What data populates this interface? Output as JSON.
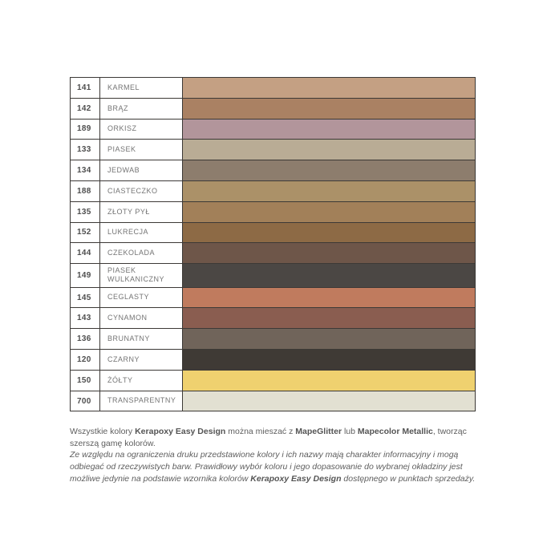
{
  "table": {
    "border_color": "#3c3936",
    "rows": [
      {
        "code": "141",
        "name": "KARMEL",
        "color": "#C4A083"
      },
      {
        "code": "142",
        "name": "BRĄZ",
        "color": "#AA8163"
      },
      {
        "code": "189",
        "name": "ORKISZ",
        "color": "#B2959B"
      },
      {
        "code": "133",
        "name": "PIASEK",
        "color": "#B9AC95"
      },
      {
        "code": "134",
        "name": "JEDWAB",
        "color": "#8D7D6D"
      },
      {
        "code": "188",
        "name": "CIASTECZKO",
        "color": "#AB9168"
      },
      {
        "code": "135",
        "name": "ZŁOTY PYŁ",
        "color": "#A28059"
      },
      {
        "code": "152",
        "name": "LUKRECJA",
        "color": "#8D6A45"
      },
      {
        "code": "144",
        "name": "CZEKOLADA",
        "color": "#6E5649"
      },
      {
        "code": "149",
        "name": "PIASEK WULKANICZNY",
        "color": "#4B4744"
      },
      {
        "code": "145",
        "name": "CEGLASTY",
        "color": "#C07B5E"
      },
      {
        "code": "143",
        "name": "CYNAMON",
        "color": "#8A5D50"
      },
      {
        "code": "136",
        "name": "BRUNATNY",
        "color": "#70645A"
      },
      {
        "code": "120",
        "name": "CZARNY",
        "color": "#3F3A35"
      },
      {
        "code": "150",
        "name": "ŻÓŁTY",
        "color": "#EFD16F"
      },
      {
        "code": "700",
        "name": "TRANSPARENTNY",
        "color": "#E2E0D2"
      }
    ]
  },
  "footer": {
    "paragraph1": [
      {
        "text": "Wszystkie kolory ",
        "bold": false
      },
      {
        "text": "Kerapoxy Easy Design",
        "bold": true
      },
      {
        "text": " można mieszać z ",
        "bold": false
      },
      {
        "text": "MapeGlitter",
        "bold": true
      },
      {
        "text": " lub ",
        "bold": false
      },
      {
        "text": "Mapecolor Metallic",
        "bold": true
      },
      {
        "text": ", tworząc szerszą gamę kolorów.",
        "bold": false
      }
    ],
    "paragraph2": [
      {
        "text": "Ze względu na ograniczenia druku przedstawione kolory i ich nazwy mają charakter informacyjny i mogą odbiegać od rzeczywistych barw. Prawidłowy wybór koloru i jego dopasowanie do wybranej okładziny jest możliwe jedynie na podstawie wzornika kolorów ",
        "bold": false
      },
      {
        "text": "Kerapoxy Easy Design",
        "bold": true
      },
      {
        "text": " dostępnego w punktach sprzedaży.",
        "bold": false
      }
    ]
  }
}
